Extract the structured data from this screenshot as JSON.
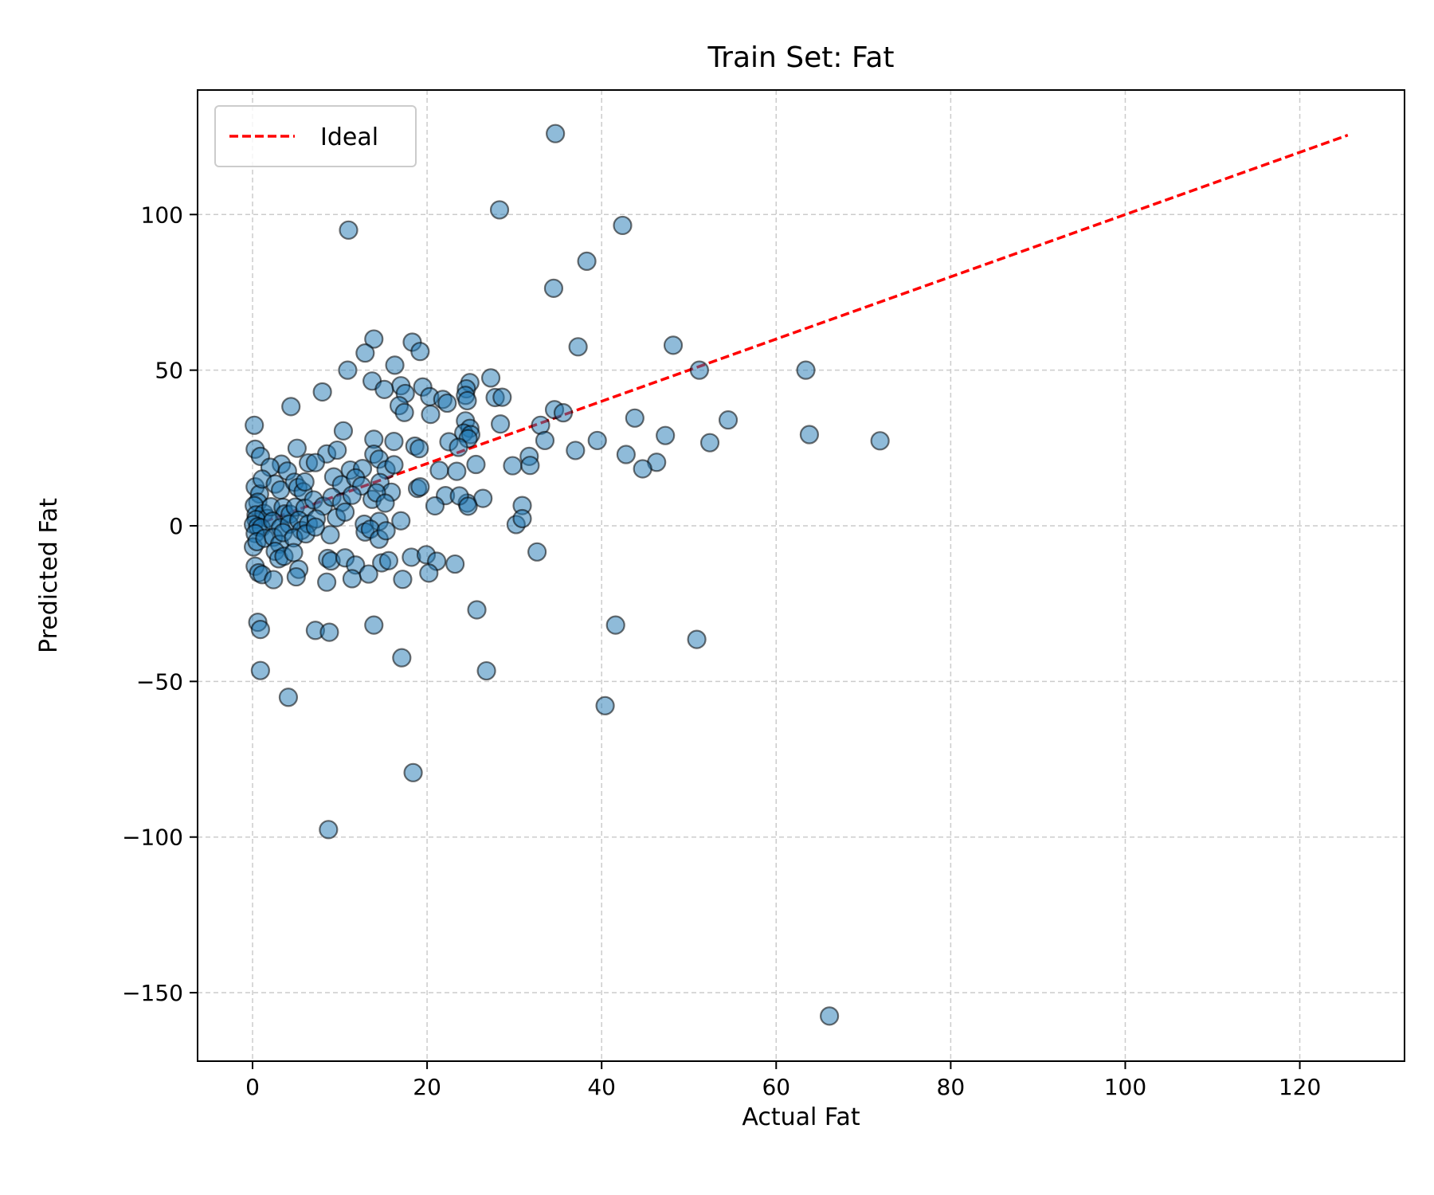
{
  "chart_data": {
    "type": "scatter",
    "title": "Train Set: Fat",
    "xlabel": "Actual Fat",
    "ylabel": "Predicted Fat",
    "xlim": [
      -6.3,
      132
    ],
    "ylim": [
      -172,
      140
    ],
    "xticks": [
      0,
      20,
      40,
      60,
      80,
      100,
      120
    ],
    "yticks": [
      -150,
      -100,
      -50,
      0,
      50,
      100
    ],
    "xtick_labels": [
      "0",
      "20",
      "40",
      "60",
      "80",
      "100",
      "120"
    ],
    "ytick_labels": [
      "−150",
      "−100",
      "−50",
      "0",
      "50",
      "100"
    ],
    "grid": true,
    "legend_position": "top-left",
    "colors": {
      "points": "#1f77b4",
      "point_edge": "#000000",
      "ideal": "#ff0000",
      "grid": "#cccccc"
    },
    "series": [
      {
        "type": "scatter",
        "points": [
          [
            34.7,
            126
          ],
          [
            28.3,
            101.5
          ],
          [
            42.4,
            96.5
          ],
          [
            11.0,
            95
          ],
          [
            38.3,
            85
          ],
          [
            34.5,
            76.3
          ],
          [
            48.2,
            58
          ],
          [
            37.3,
            57.5
          ],
          [
            13.9,
            60
          ],
          [
            12.9,
            55.5
          ],
          [
            18.3,
            59
          ],
          [
            19.2,
            56
          ],
          [
            16.3,
            51.6
          ],
          [
            10.9,
            50
          ],
          [
            51.2,
            50
          ],
          [
            63.4,
            50
          ],
          [
            13.7,
            46.5
          ],
          [
            17.0,
            45
          ],
          [
            19.5,
            44.6
          ],
          [
            15.1,
            43.8
          ],
          [
            8.0,
            43
          ],
          [
            17.5,
            42.5
          ],
          [
            20.3,
            41.5
          ],
          [
            21.8,
            40.6
          ],
          [
            22.3,
            39.4
          ],
          [
            24.9,
            46
          ],
          [
            24.5,
            44
          ],
          [
            24.4,
            41.9
          ],
          [
            24.6,
            40.2
          ],
          [
            27.3,
            47.5
          ],
          [
            27.8,
            41.2
          ],
          [
            28.6,
            41.3
          ],
          [
            4.4,
            38.3
          ],
          [
            16.8,
            38.6
          ],
          [
            17.4,
            36.4
          ],
          [
            20.4,
            35.8
          ],
          [
            34.6,
            37.3
          ],
          [
            35.6,
            36.3
          ],
          [
            28.4,
            32.7
          ],
          [
            33.0,
            32.3
          ],
          [
            24.4,
            33.7
          ],
          [
            24.9,
            31.3
          ],
          [
            43.8,
            34.6
          ],
          [
            54.5,
            34
          ],
          [
            0.2,
            32.3
          ],
          [
            10.4,
            30.5
          ],
          [
            24.2,
            29.8
          ],
          [
            25.0,
            29.3
          ],
          [
            24.7,
            28
          ],
          [
            63.8,
            29.3
          ],
          [
            47.3,
            29
          ],
          [
            13.9,
            27.8
          ],
          [
            16.2,
            27.1
          ],
          [
            22.5,
            27
          ],
          [
            33.5,
            27.4
          ],
          [
            39.5,
            27.4
          ],
          [
            52.4,
            26.7
          ],
          [
            71.9,
            27.3
          ],
          [
            0.3,
            24.6
          ],
          [
            5.1,
            24.9
          ],
          [
            18.6,
            25.6
          ],
          [
            19.1,
            24.8
          ],
          [
            23.6,
            25.2
          ],
          [
            37.0,
            24.2
          ],
          [
            0.9,
            22.3
          ],
          [
            3.3,
            19.8
          ],
          [
            8.5,
            23.1
          ],
          [
            9.7,
            24.3
          ],
          [
            13.9,
            23.0
          ],
          [
            14.5,
            21.4
          ],
          [
            25.6,
            19.7
          ],
          [
            31.7,
            22.3
          ],
          [
            42.8,
            22.9
          ],
          [
            46.3,
            20.4
          ],
          [
            29.8,
            19.3
          ],
          [
            31.8,
            19.4
          ],
          [
            44.7,
            18.3
          ],
          [
            2.0,
            18.8
          ],
          [
            4.0,
            17.6
          ],
          [
            6.4,
            20.2
          ],
          [
            7.2,
            20.3
          ],
          [
            11.2,
            17.9
          ],
          [
            12.6,
            18.4
          ],
          [
            15.3,
            18.0
          ],
          [
            16.2,
            19.6
          ],
          [
            21.4,
            17.8
          ],
          [
            23.4,
            17.5
          ],
          [
            0.3,
            12.5
          ],
          [
            0.8,
            10.2
          ],
          [
            1.1,
            15.0
          ],
          [
            2.6,
            13.4
          ],
          [
            3.2,
            11.5
          ],
          [
            4.8,
            14.0
          ],
          [
            5.2,
            12.3
          ],
          [
            5.8,
            10.9
          ],
          [
            6.0,
            14.1
          ],
          [
            9.3,
            15.7
          ],
          [
            10.2,
            13.2
          ],
          [
            11.8,
            15.4
          ],
          [
            12.5,
            12.8
          ],
          [
            14.6,
            13.9
          ],
          [
            15.9,
            10.8
          ],
          [
            18.9,
            12.0
          ],
          [
            19.2,
            12.5
          ],
          [
            22.1,
            9.7
          ],
          [
            24.6,
            7.3
          ],
          [
            26.4,
            8.8
          ],
          [
            0.6,
            7.6
          ],
          [
            0.2,
            6.5
          ],
          [
            0.4,
            3.5
          ],
          [
            1.3,
            4.0
          ],
          [
            1.7,
            2.4
          ],
          [
            2.1,
            6.1
          ],
          [
            3.5,
            5.9
          ],
          [
            3.7,
            3.8
          ],
          [
            4.3,
            3.7
          ],
          [
            4.9,
            6.0
          ],
          [
            6.0,
            5.7
          ],
          [
            7.0,
            8.3
          ],
          [
            8.1,
            6.3
          ],
          [
            9.1,
            9.2
          ],
          [
            10.2,
            7.5
          ],
          [
            11.4,
            9.8
          ],
          [
            13.7,
            8.5
          ],
          [
            14.2,
            10.6
          ],
          [
            15.2,
            7.3
          ],
          [
            20.9,
            6.4
          ],
          [
            23.7,
            9.6
          ],
          [
            24.7,
            6.3
          ],
          [
            30.9,
            6.5
          ],
          [
            0.4,
            2.0
          ],
          [
            0.1,
            0.4
          ],
          [
            0.6,
            -0.3
          ],
          [
            1.0,
            -0.6
          ],
          [
            2.3,
            1.5
          ],
          [
            3.2,
            -0.6
          ],
          [
            4.2,
            0.5
          ],
          [
            5.3,
            1.8
          ],
          [
            5.6,
            -1.5
          ],
          [
            6.4,
            0.6
          ],
          [
            7.3,
            2.2
          ],
          [
            8.9,
            -2.9
          ],
          [
            9.6,
            2.6
          ],
          [
            10.6,
            4.4
          ],
          [
            12.8,
            0.5
          ],
          [
            14.5,
            1.4
          ],
          [
            17.0,
            1.6
          ],
          [
            30.2,
            0.4
          ],
          [
            30.9,
            2.3
          ],
          [
            0.3,
            -2.5
          ],
          [
            0.1,
            -6.8
          ],
          [
            0.5,
            -5.1
          ],
          [
            1.4,
            -4.0
          ],
          [
            2.4,
            -3.7
          ],
          [
            3.1,
            -5.9
          ],
          [
            3.5,
            -2.2
          ],
          [
            4.7,
            -3.9
          ],
          [
            6.1,
            -2.6
          ],
          [
            7.2,
            -0.4
          ],
          [
            12.9,
            -2.0
          ],
          [
            13.5,
            -1.1
          ],
          [
            14.5,
            -4.3
          ],
          [
            15.3,
            -1.6
          ],
          [
            2.6,
            -8.2
          ],
          [
            3.0,
            -10.6
          ],
          [
            3.6,
            -9.8
          ],
          [
            4.7,
            -8.6
          ],
          [
            8.6,
            -10.5
          ],
          [
            9.0,
            -11.3
          ],
          [
            10.6,
            -10.3
          ],
          [
            11.8,
            -12.6
          ],
          [
            14.8,
            -11.9
          ],
          [
            15.6,
            -11.2
          ],
          [
            18.2,
            -10.1
          ],
          [
            19.9,
            -9.3
          ],
          [
            21.1,
            -11.4
          ],
          [
            23.2,
            -12.3
          ],
          [
            32.6,
            -8.4
          ],
          [
            0.3,
            -13.0
          ],
          [
            0.7,
            -15.1
          ],
          [
            1.1,
            -15.7
          ],
          [
            2.4,
            -17.3
          ],
          [
            5.3,
            -14.0
          ],
          [
            5.0,
            -16.4
          ],
          [
            8.5,
            -18.1
          ],
          [
            11.4,
            -17.0
          ],
          [
            13.3,
            -15.5
          ],
          [
            17.2,
            -17.2
          ],
          [
            20.2,
            -15.2
          ],
          [
            25.7,
            -27.0
          ],
          [
            0.6,
            -31.0
          ],
          [
            0.9,
            -33.3
          ],
          [
            7.2,
            -33.6
          ],
          [
            8.8,
            -34.2
          ],
          [
            13.9,
            -31.9
          ],
          [
            41.6,
            -31.9
          ],
          [
            50.9,
            -36.5
          ],
          [
            17.1,
            -42.4
          ],
          [
            26.8,
            -46.6
          ],
          [
            0.9,
            -46.5
          ],
          [
            4.1,
            -55.1
          ],
          [
            40.4,
            -57.8
          ],
          [
            18.4,
            -79.3
          ],
          [
            8.7,
            -97.6
          ],
          [
            66.1,
            -157.5
          ]
        ]
      },
      {
        "type": "line",
        "name": "Ideal",
        "style": "dashed",
        "points": [
          [
            0,
            0
          ],
          [
            125.5,
            125.5
          ]
        ]
      }
    ],
    "legend": {
      "label": "Ideal"
    }
  }
}
